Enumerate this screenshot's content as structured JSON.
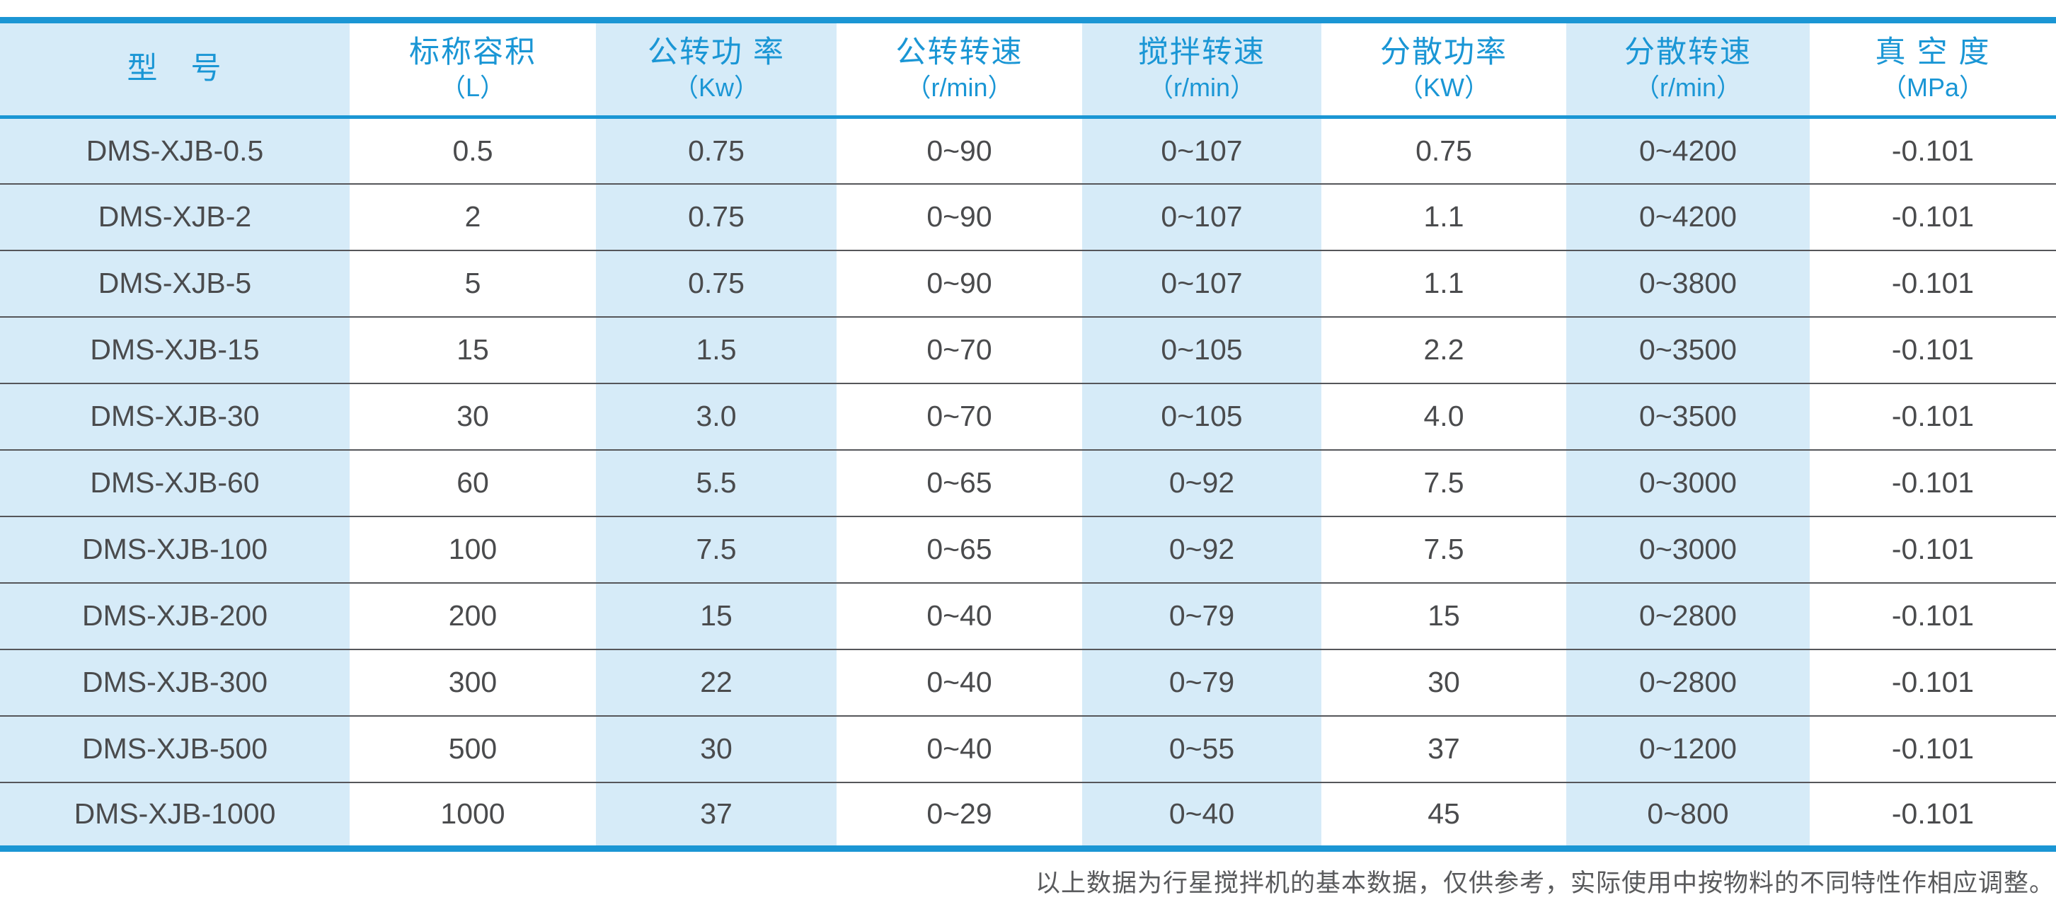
{
  "colors": {
    "accent_blue": "#1b96d4",
    "stripe_blue": "#d6ebf8",
    "row_separator_gray": "#55565a",
    "body_text_gray": "#4a4b4d",
    "footer_text_gray": "#595a5c"
  },
  "chart_data": {
    "type": "table",
    "columns": [
      {
        "title": "型　号",
        "unit": ""
      },
      {
        "title": "标称容积",
        "unit": "（L）"
      },
      {
        "title": "公转功 率",
        "unit": "（Kw）"
      },
      {
        "title": "公转转速",
        "unit": "（r/min）"
      },
      {
        "title": "搅拌转速",
        "unit": "（r/min）"
      },
      {
        "title": "分散功率",
        "unit": "（KW）"
      },
      {
        "title": "分散转速",
        "unit": "（r/min）"
      },
      {
        "title": "真 空 度",
        "unit": "（MPa）"
      }
    ],
    "rows": [
      [
        "DMS-XJB-0.5",
        "0.5",
        "0.75",
        "0~90",
        "0~107",
        "0.75",
        "0~4200",
        "-0.101"
      ],
      [
        "DMS-XJB-2",
        "2",
        "0.75",
        "0~90",
        "0~107",
        "1.1",
        "0~4200",
        "-0.101"
      ],
      [
        "DMS-XJB-5",
        "5",
        "0.75",
        "0~90",
        "0~107",
        "1.1",
        "0~3800",
        "-0.101"
      ],
      [
        "DMS-XJB-15",
        "15",
        "1.5",
        "0~70",
        "0~105",
        "2.2",
        "0~3500",
        "-0.101"
      ],
      [
        "DMS-XJB-30",
        "30",
        "3.0",
        "0~70",
        "0~105",
        "4.0",
        "0~3500",
        "-0.101"
      ],
      [
        "DMS-XJB-60",
        "60",
        "5.5",
        "0~65",
        "0~92",
        "7.5",
        "0~3000",
        "-0.101"
      ],
      [
        "DMS-XJB-100",
        "100",
        "7.5",
        "0~65",
        "0~92",
        "7.5",
        "0~3000",
        "-0.101"
      ],
      [
        "DMS-XJB-200",
        "200",
        "15",
        "0~40",
        "0~79",
        "15",
        "0~2800",
        "-0.101"
      ],
      [
        "DMS-XJB-300",
        "300",
        "22",
        "0~40",
        "0~79",
        "30",
        "0~2800",
        "-0.101"
      ],
      [
        "DMS-XJB-500",
        "500",
        "30",
        "0~40",
        "0~55",
        "37",
        "0~1200",
        "-0.101"
      ],
      [
        "DMS-XJB-1000",
        "1000",
        "37",
        "0~29",
        "0~40",
        "45",
        "0~800",
        "-0.101"
      ]
    ]
  },
  "footer": {
    "note": "以上数据为行星搅拌机的基本数据，仅供参考，实际使用中按物料的不同特性作相应调整。"
  }
}
